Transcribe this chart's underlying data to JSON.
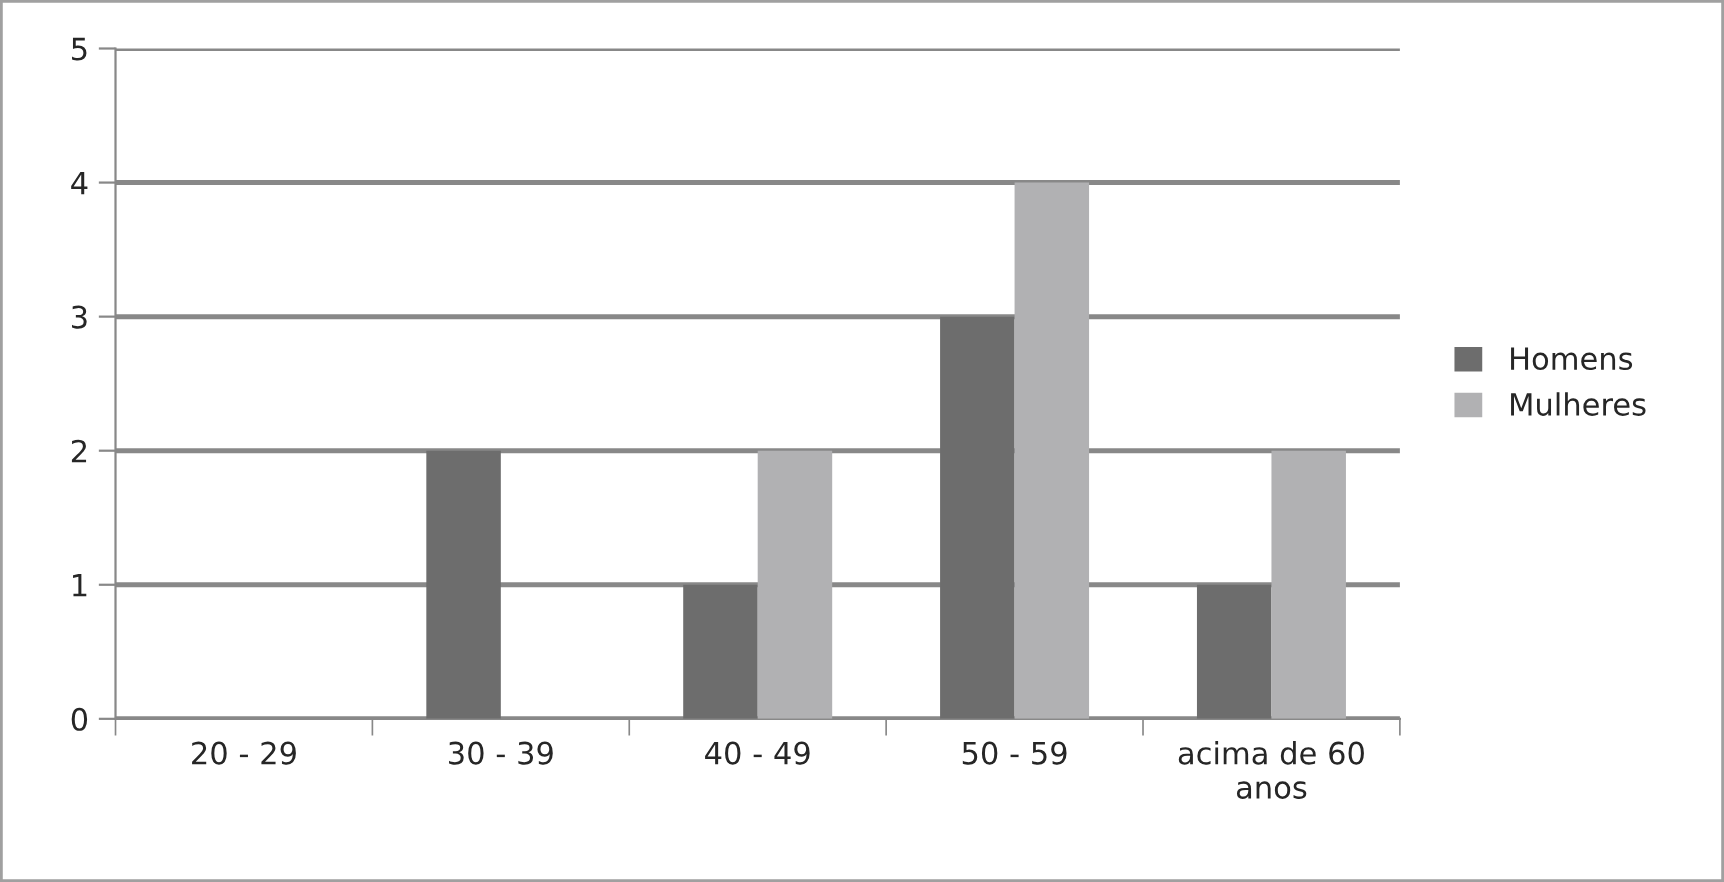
{
  "chart_data": {
    "type": "bar",
    "categories": [
      "20 - 29",
      "30 - 39",
      "40 - 49",
      "50 - 59",
      "acima de 60 anos"
    ],
    "series": [
      {
        "name": "Homens",
        "color": "#6d6d6d",
        "values": [
          0,
          2,
          1,
          3,
          1
        ]
      },
      {
        "name": "Mulheres",
        "color": "#b1b1b3",
        "values": [
          0,
          0,
          2,
          4,
          2
        ]
      }
    ],
    "ylim": [
      0,
      5
    ],
    "yticks": [
      0,
      1,
      2,
      3,
      4,
      5
    ],
    "grid": "y",
    "legend": "right"
  }
}
